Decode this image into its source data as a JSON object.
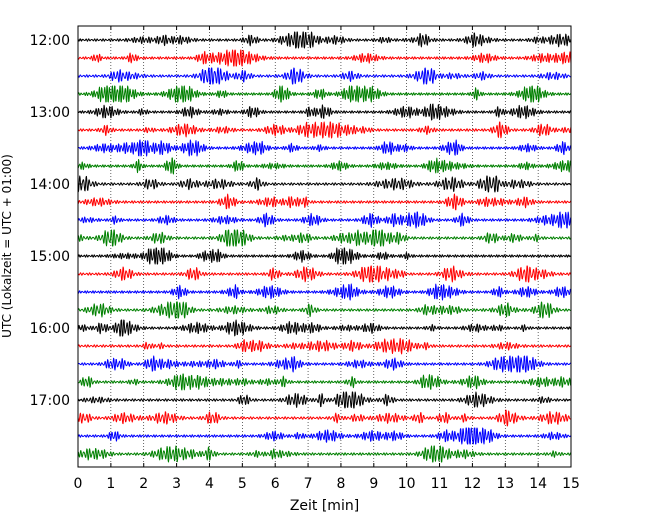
{
  "chart_data": {
    "type": "line",
    "title": "",
    "xlabel": "Zeit  [min]",
    "ylabel": "UTC (Lokalzeit = UTC + 01:00)",
    "xlim": [
      0,
      15
    ],
    "x_ticks": [
      0,
      1,
      2,
      3,
      4,
      5,
      6,
      7,
      8,
      9,
      10,
      11,
      12,
      13,
      14,
      15
    ],
    "x_tick_labels": [
      "0",
      "1",
      "2",
      "3",
      "4",
      "5",
      "6",
      "7",
      "8",
      "9",
      "10",
      "11",
      "12",
      "13",
      "14",
      "15"
    ],
    "y_tick_labels": [
      "12:00",
      "13:00",
      "14:00",
      "15:00",
      "16:00",
      "17:00"
    ],
    "trace_interval_min": 15,
    "vertical_grid": "dotted",
    "colors_cycle": [
      "#000000",
      "#ff0000",
      "#0000ff",
      "#008000"
    ],
    "traces": [
      {
        "start": "12:00",
        "color": "#000000"
      },
      {
        "start": "12:15",
        "color": "#ff0000"
      },
      {
        "start": "12:30",
        "color": "#0000ff"
      },
      {
        "start": "12:45",
        "color": "#008000"
      },
      {
        "start": "13:00",
        "color": "#000000"
      },
      {
        "start": "13:15",
        "color": "#ff0000"
      },
      {
        "start": "13:30",
        "color": "#0000ff"
      },
      {
        "start": "13:45",
        "color": "#008000"
      },
      {
        "start": "14:00",
        "color": "#000000"
      },
      {
        "start": "14:15",
        "color": "#ff0000"
      },
      {
        "start": "14:30",
        "color": "#0000ff"
      },
      {
        "start": "14:45",
        "color": "#008000"
      },
      {
        "start": "15:00",
        "color": "#000000"
      },
      {
        "start": "15:15",
        "color": "#ff0000"
      },
      {
        "start": "15:30",
        "color": "#0000ff"
      },
      {
        "start": "15:45",
        "color": "#008000"
      },
      {
        "start": "16:00",
        "color": "#000000"
      },
      {
        "start": "16:15",
        "color": "#ff0000"
      },
      {
        "start": "16:30",
        "color": "#0000ff"
      },
      {
        "start": "16:45",
        "color": "#008000"
      },
      {
        "start": "17:00",
        "color": "#000000"
      },
      {
        "start": "17:15",
        "color": "#ff0000"
      },
      {
        "start": "17:30",
        "color": "#0000ff"
      },
      {
        "start": "17:45",
        "color": "#008000"
      }
    ]
  }
}
